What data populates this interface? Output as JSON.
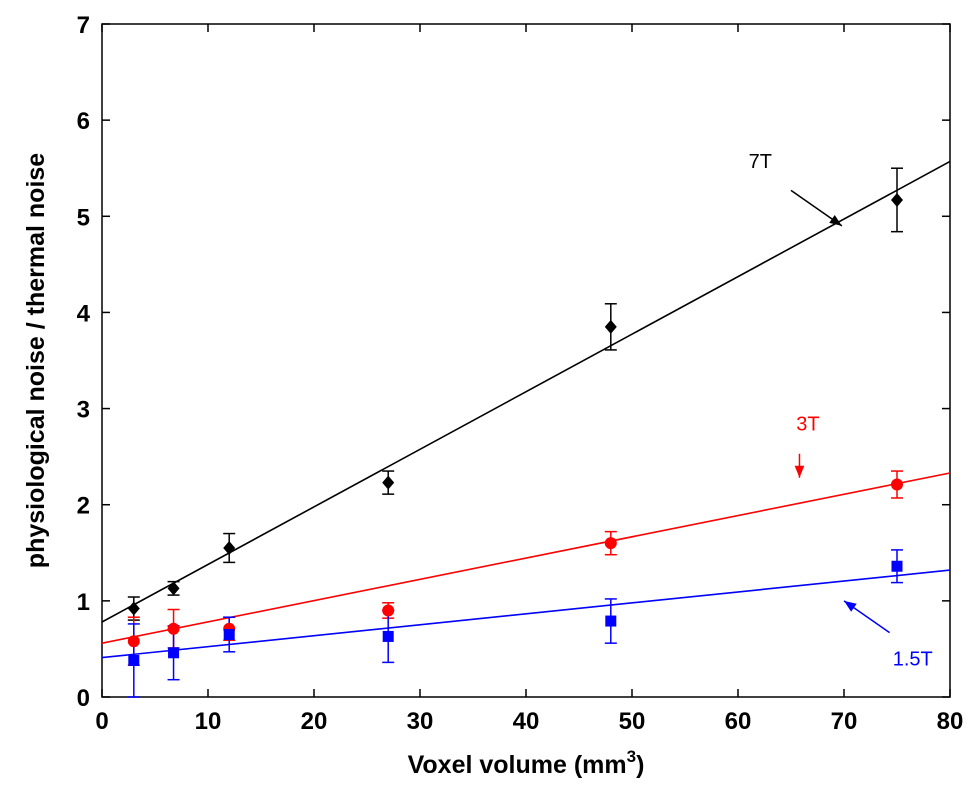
{
  "chart_data": {
    "type": "scatter",
    "title": "",
    "xlabel": "Voxel volume (mm",
    "xlabel_superscript": "3",
    "xlabel_close": ")",
    "ylabel": "physiological noise / thermal noise",
    "xlim": [
      0,
      80
    ],
    "ylim": [
      0,
      7
    ],
    "xticks": [
      "0",
      "10",
      "20",
      "30",
      "40",
      "50",
      "60",
      "70",
      "80"
    ],
    "yticks": [
      "0",
      "1",
      "2",
      "3",
      "4",
      "5",
      "6",
      "7"
    ],
    "grid": false,
    "series": [
      {
        "name": "7T",
        "color": "#000000",
        "marker": "diamond",
        "x": [
          3,
          6.75,
          12,
          27,
          48,
          75
        ],
        "y": [
          0.92,
          1.13,
          1.55,
          2.23,
          3.85,
          5.17
        ],
        "err": [
          0.12,
          0.07,
          0.15,
          0.12,
          0.24,
          0.33
        ],
        "fit": {
          "x": [
            0,
            80
          ],
          "y": [
            0.78,
            5.57
          ]
        },
        "annotation": {
          "label": "7T",
          "text_at": [
            61,
            5.5
          ],
          "arrow_from": [
            65,
            5.27
          ],
          "arrow_to": [
            69.8,
            4.9
          ]
        }
      },
      {
        "name": "3T",
        "color": "#ff0000",
        "marker": "circle",
        "x": [
          3,
          6.75,
          12,
          27,
          48,
          75
        ],
        "y": [
          0.58,
          0.71,
          0.71,
          0.9,
          1.6,
          2.21
        ],
        "err": [
          0.25,
          0.2,
          0.12,
          0.08,
          0.12,
          0.14
        ],
        "fit": {
          "x": [
            0,
            80
          ],
          "y": [
            0.56,
            2.33
          ]
        },
        "annotation": {
          "label": "3T",
          "text_at": [
            65.5,
            2.77
          ],
          "arrow_from": [
            65.8,
            2.53
          ],
          "arrow_to": [
            65.8,
            2.28
          ]
        }
      },
      {
        "name": "1.5T",
        "color": "#0000ff",
        "marker": "square",
        "x": [
          3,
          6.75,
          12,
          27,
          48,
          75
        ],
        "y": [
          0.38,
          0.46,
          0.65,
          0.63,
          0.79,
          1.36
        ],
        "err": [
          0.38,
          0.28,
          0.18,
          0.27,
          0.23,
          0.17
        ],
        "fit": {
          "x": [
            0,
            80
          ],
          "y": [
            0.41,
            1.32
          ]
        },
        "annotation": {
          "label": "1.5T",
          "text_at": [
            74.6,
            0.33
          ],
          "arrow_from": [
            74.3,
            0.67
          ],
          "arrow_to": [
            70,
            1.0
          ]
        }
      }
    ]
  }
}
